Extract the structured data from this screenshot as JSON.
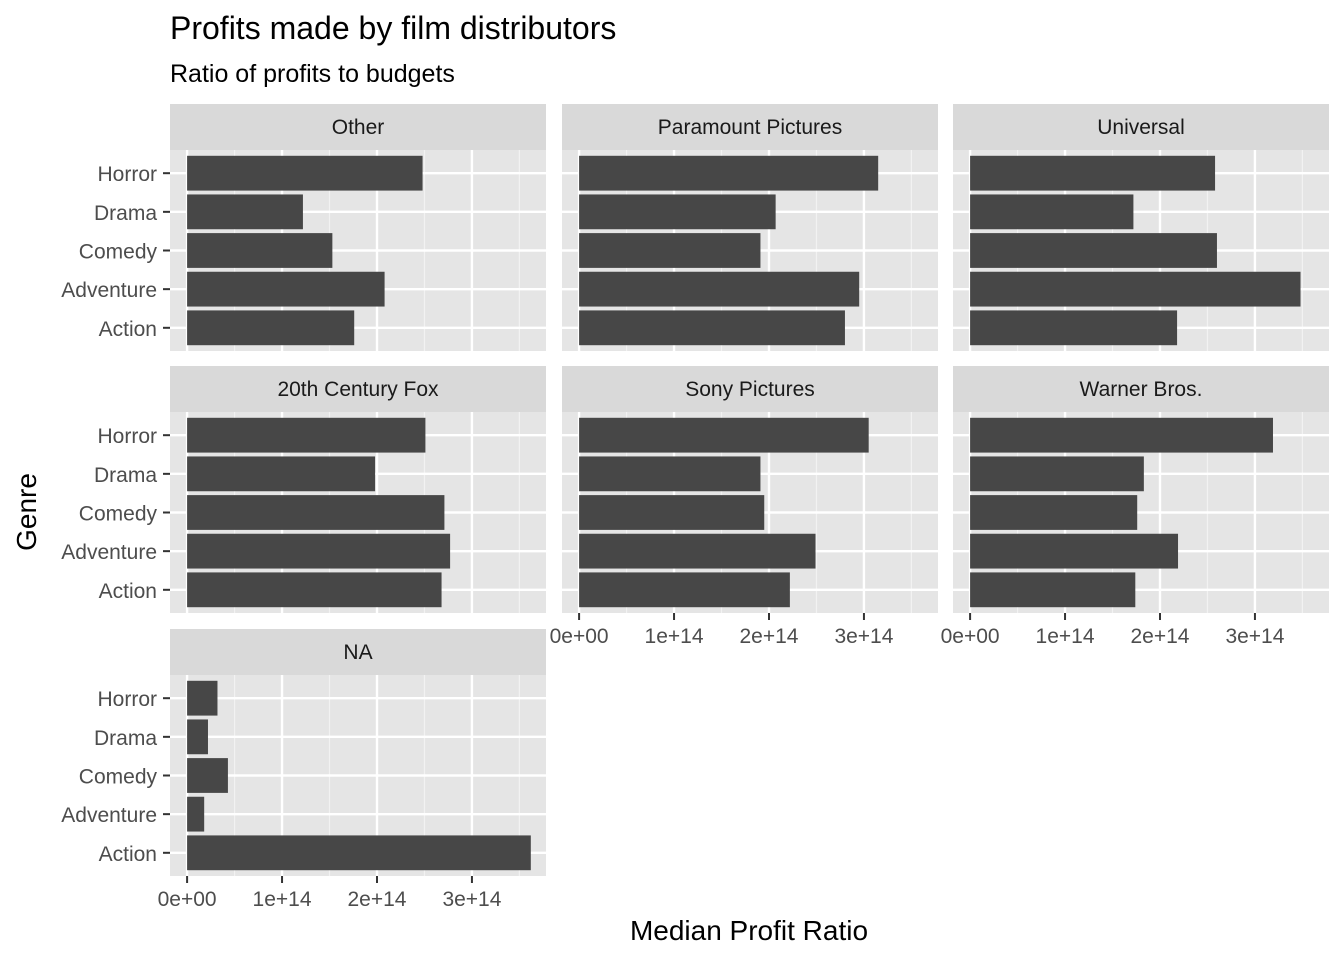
{
  "chart_data": {
    "type": "bar",
    "orientation": "horizontal",
    "title": "Profits made by film distributors",
    "subtitle": "Ratio of profits to budgets",
    "xlabel": "Median Profit Ratio",
    "ylabel": "Genre",
    "categories": [
      "Action",
      "Adventure",
      "Comedy",
      "Drama",
      "Horror"
    ],
    "xlim": [
      -18000000000000.0,
      378000000000000.0
    ],
    "x_ticks": [
      0,
      100000000000000,
      200000000000000,
      300000000000000
    ],
    "x_tick_labels": [
      "0e+00",
      "1e+14",
      "2e+14",
      "3e+14"
    ],
    "grid": true,
    "bar_color": "#474747",
    "panel_background": "#e5e5e5",
    "strip_background": "#d9d9d9",
    "series": [
      {
        "name": "Other",
        "values": [
          176000000000000,
          208000000000000,
          153000000000000,
          122000000000000,
          248000000000000
        ]
      },
      {
        "name": "Paramount Pictures",
        "values": [
          280000000000000,
          295000000000000,
          191000000000000,
          207000000000000,
          315000000000000
        ]
      },
      {
        "name": "Universal",
        "values": [
          218000000000000,
          348000000000000,
          260000000000000,
          172000000000000,
          258000000000000
        ]
      },
      {
        "name": "20th Century Fox",
        "values": [
          268000000000000,
          277000000000000,
          271000000000000,
          198000000000000,
          251000000000000
        ]
      },
      {
        "name": "Sony Pictures",
        "values": [
          222000000000000,
          249000000000000,
          195000000000000,
          191000000000000,
          305000000000000
        ]
      },
      {
        "name": "Warner Bros.",
        "values": [
          174000000000000,
          219000000000000,
          176000000000000,
          183000000000000,
          319000000000000
        ]
      },
      {
        "name": "NA",
        "values": [
          362000000000000,
          18000000000000,
          43000000000000,
          22000000000000,
          32000000000000
        ]
      }
    ]
  }
}
